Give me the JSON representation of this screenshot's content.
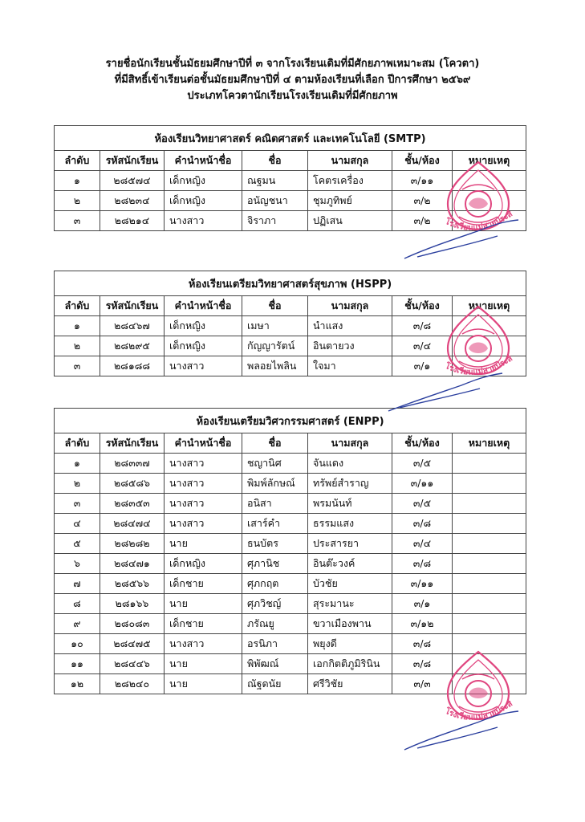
{
  "header": {
    "line1": "รายชื่อนักเรียนชั้นมัธยมศึกษาปีที่ ๓ จากโรงเรียนเดิมที่มีศักยภาพเหมาะสม (โควตา)",
    "line2": "ที่มีสิทธิ์เข้าเรียนต่อชั้นมัธยมศึกษาปีที่ ๔ ตามห้องเรียนที่เลือก ปีการศึกษา ๒๕๖๙",
    "line3": "ประเภทโควตานักเรียนโรงเรียนเดิมที่มีศักยภาพ"
  },
  "columns": [
    "ลำดับ",
    "รหัสนักเรียน",
    "คำนำหน้าชื่อ",
    "ชื่อ",
    "นามสกุล",
    "ชั้น/ห้อง",
    "หมายเหตุ"
  ],
  "tables": [
    {
      "title": "ห้องเรียนวิทยาศาสตร์ คณิตศาสตร์ และเทคโนโลยี (SMTP)",
      "rows": [
        [
          "๑",
          "๒๘๕๗๔",
          "เด็กหญิง",
          "ณฐมน",
          "โคตรเครื่อง",
          "๓/๑๑",
          ""
        ],
        [
          "๒",
          "๒๘๒๓๔",
          "เด็กหญิง",
          "อนัญชนา",
          "ชุมภูทิพย์",
          "๓/๒",
          ""
        ],
        [
          "๓",
          "๒๘๒๑๔",
          "นางสาว",
          "จิราภา",
          "ปฏิเสน",
          "๓/๒",
          ""
        ]
      ]
    },
    {
      "title": "ห้องเรียนเตรียมวิทยาศาสตร์สุขภาพ (HSPP)",
      "rows": [
        [
          "๑",
          "๒๘๔๖๗",
          "เด็กหญิง",
          "เมษา",
          "นำแสง",
          "๓/๘",
          ""
        ],
        [
          "๒",
          "๒๘๒๙๕",
          "เด็กหญิง",
          "กัญญารัตน์",
          "อินตายวง",
          "๓/๔",
          ""
        ],
        [
          "๓",
          "๒๘๑๘๘",
          "นางสาว",
          "พลอยไพลิน",
          "ใจมา",
          "๓/๑",
          ""
        ]
      ]
    },
    {
      "title": "ห้องเรียนเตรียมวิศวกรรมศาสตร์ (ENPP)",
      "rows": [
        [
          "๑",
          "๒๘๓๓๗",
          "นางสาว",
          "ชญานิศ",
          "จันแดง",
          "๓/๕",
          ""
        ],
        [
          "๒",
          "๒๘๕๘๖",
          "นางสาว",
          "พิมพ์ลักษณ์",
          "ทรัพย์สำราญ",
          "๓/๑๑",
          ""
        ],
        [
          "๓",
          "๒๘๓๕๓",
          "นางสาว",
          "อนิสา",
          "พรมนันท์",
          "๓/๕",
          ""
        ],
        [
          "๔",
          "๒๘๔๗๔",
          "นางสาว",
          "เสาร์คำ",
          "ธรรมแสง",
          "๓/๘",
          ""
        ],
        [
          "๕",
          "๒๘๒๘๒",
          "นาย",
          "ธนบัตร",
          "ประสารยา",
          "๓/๔",
          ""
        ],
        [
          "๖",
          "๒๘๔๗๑",
          "เด็กหญิง",
          "ศุภานิช",
          "อินต๊ะวงค์",
          "๓/๘",
          ""
        ],
        [
          "๗",
          "๒๘๕๖๖",
          "เด็กชาย",
          "ศุภกฤต",
          "บัวชัย",
          "๓/๑๑",
          ""
        ],
        [
          "๘",
          "๒๘๑๖๖",
          "นาย",
          "ศุภวิชญ์",
          "สุระมานะ",
          "๓/๑",
          ""
        ],
        [
          "๙",
          "๒๘๐๘๓",
          "เด็กชาย",
          "ภรัณยู",
          "ขวาเมืองพาน",
          "๓/๑๒",
          ""
        ],
        [
          "๑๐",
          "๒๘๔๗๕",
          "นางสาว",
          "อรนิภา",
          "พยุงดี",
          "๓/๘",
          ""
        ],
        [
          "๑๑",
          "๒๘๔๔๖",
          "นาย",
          "พิพัฒณ์",
          "เอกกิตติภูมิรินิน",
          "๓/๘",
          ""
        ],
        [
          "๑๒",
          "๒๘๒๔๐",
          "นาย",
          "ณัฐดนัย",
          "ศรีวิชัย",
          "๓/๓",
          ""
        ]
      ]
    }
  ],
  "seal": {
    "text": "โรงเรียนแม่สายประสิทธิ์ศาสตร์",
    "color": "#e0457f",
    "icon": "school-seal-icon"
  },
  "signature": {
    "color": "#2b3f9e",
    "icon": "signature-icon"
  }
}
